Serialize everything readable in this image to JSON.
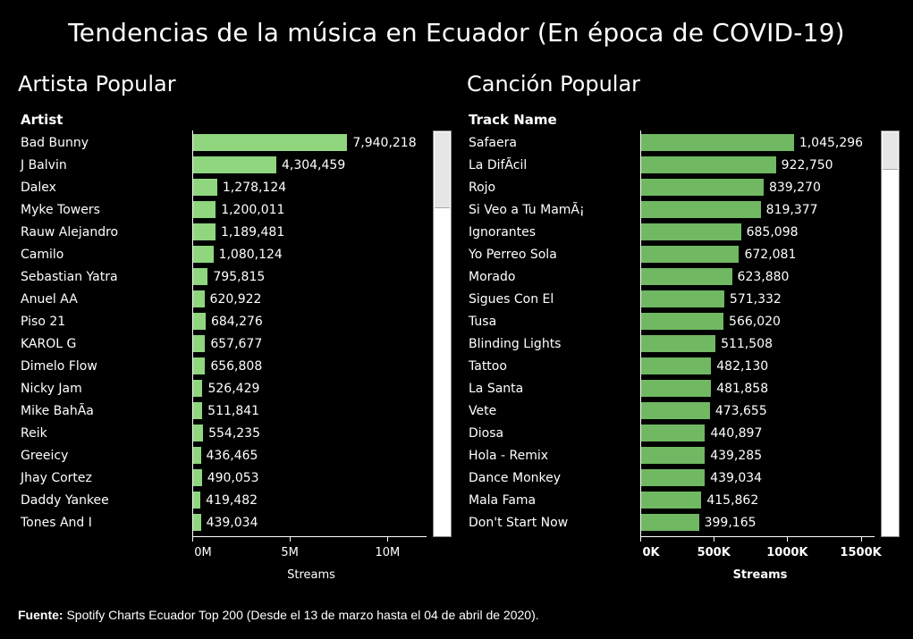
{
  "title": "Tendencias de la música en Ecuador (En época de COVID-19)",
  "footer": {
    "label": "Fuente:",
    "text": " Spotify Charts Ecuador Top 200 (Desde el 13 de marzo hasta el 04 de abril de 2020)."
  },
  "colors": {
    "background": "#000000",
    "left_bar": "#8fd67f",
    "right_bar": "#70b862",
    "text": "#ffffff"
  },
  "chart_data": [
    {
      "type": "bar",
      "orientation": "horizontal",
      "title": "Artista Popular",
      "category_header": "Artist",
      "xlabel": "Streams",
      "xlim": [
        0,
        12000000
      ],
      "ticks": [
        0,
        5000000,
        10000000
      ],
      "tick_labels": [
        "0M",
        "5M",
        "10M"
      ],
      "categories": [
        "Bad Bunny",
        "J Balvin",
        "Dalex",
        "Myke Towers",
        "Rauw Alejandro",
        "Camilo",
        "Sebastian Yatra",
        "Anuel AA",
        "Piso 21",
        "KAROL G",
        "Dimelo Flow",
        "Nicky Jam",
        "Mike BahÃa",
        "Reik",
        "Greeicy",
        "Jhay Cortez",
        "Daddy Yankee",
        "Tones And I"
      ],
      "values": [
        7940218,
        4304459,
        1278124,
        1200011,
        1189481,
        1080124,
        795815,
        620922,
        684276,
        657677,
        656808,
        526429,
        511841,
        554235,
        436465,
        490053,
        419482,
        439034
      ],
      "value_labels": [
        "7,940,218",
        "4,304,459",
        "1,278,124",
        "1,200,011",
        "1,189,481",
        "1,080,124",
        "795,815",
        "620,922",
        "684,276",
        "657,677",
        "656,808",
        "526,429",
        "511,841",
        "554,235",
        "436,465",
        "490,053",
        "419,482",
        "439,034"
      ]
    },
    {
      "type": "bar",
      "orientation": "horizontal",
      "title": "Canción Popular",
      "category_header": "Track Name",
      "xlabel": "Streams",
      "xlim": [
        0,
        1600000
      ],
      "ticks": [
        0,
        500000,
        1000000,
        1500000
      ],
      "tick_labels": [
        "0K",
        "500K",
        "1000K",
        "1500K"
      ],
      "categories": [
        "Safaera",
        "La DifÃcil",
        "Rojo",
        "Si Veo a Tu MamÃ¡",
        "Ignorantes",
        "Yo Perreo Sola",
        "Morado",
        "Sigues Con El",
        "Tusa",
        "Blinding Lights",
        "Tattoo",
        "La Santa",
        "Vete",
        "Diosa",
        "Hola - Remix",
        "Dance Monkey",
        "Mala Fama",
        "Don't Start Now"
      ],
      "values": [
        1045296,
        922750,
        839270,
        819377,
        685098,
        672081,
        623880,
        571332,
        566020,
        511508,
        482130,
        481858,
        473655,
        440897,
        439285,
        439034,
        415862,
        399165
      ],
      "value_labels": [
        "1,045,296",
        "922,750",
        "839,270",
        "819,377",
        "685,098",
        "672,081",
        "623,880",
        "571,332",
        "566,020",
        "511,508",
        "482,130",
        "481,858",
        "473,655",
        "440,897",
        "439,285",
        "439,034",
        "415,862",
        "399,165"
      ]
    }
  ]
}
